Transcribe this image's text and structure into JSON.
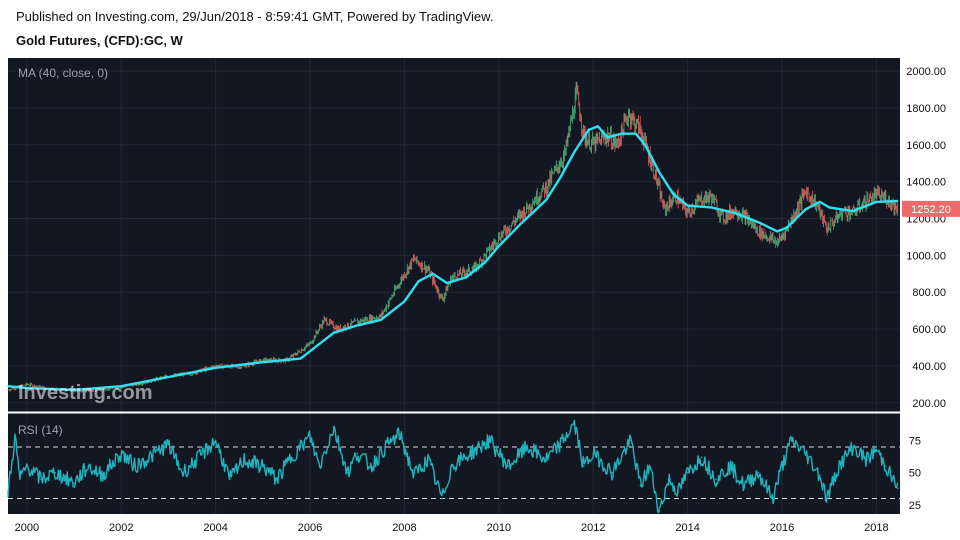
{
  "header": {
    "published": "Published on Investing.com, 29/Jun/2018 - 8:59:41 GMT, Powered by TradingView.",
    "title": "Gold Futures, (CFD):GC, W"
  },
  "watermark": "Investing.com",
  "colors": {
    "background": "#131722",
    "ma_line": "#2fe0f0",
    "rsi_line": "#1fb3be",
    "candle_up": "#48b77b",
    "candle_down": "#e0605e",
    "last_price_badge": "#ef6a6a"
  },
  "chart_data": [
    {
      "type": "line",
      "name": "price",
      "indicator_label": "MA (40, close, 0)",
      "y_range": [
        150,
        2060
      ],
      "y_ticks": [
        "2000.00",
        "1800.00",
        "1600.00",
        "1400.00",
        "1200.00",
        "1000.00",
        "800.00",
        "600.00",
        "400.00",
        "200.00"
      ],
      "y_tick_values": [
        2000,
        1800,
        1600,
        1400,
        1200,
        1000,
        800,
        600,
        400,
        200
      ],
      "last_price": "1252.20",
      "last_price_value": 1252.2,
      "series": [
        {
          "name": "Price",
          "x": [
            1999.6,
            2000.0,
            2000.5,
            2001.0,
            2001.5,
            2002.0,
            2002.5,
            2003.0,
            2003.5,
            2004.0,
            2004.5,
            2005.0,
            2005.5,
            2006.0,
            2006.3,
            2006.6,
            2007.0,
            2007.5,
            2008.0,
            2008.2,
            2008.5,
            2008.8,
            2009.0,
            2009.5,
            2010.0,
            2010.5,
            2011.0,
            2011.4,
            2011.65,
            2011.8,
            2012.0,
            2012.3,
            2012.5,
            2012.75,
            2013.0,
            2013.3,
            2013.5,
            2013.75,
            2014.0,
            2014.25,
            2014.5,
            2014.75,
            2015.0,
            2015.25,
            2015.5,
            2015.9,
            2016.0,
            2016.3,
            2016.5,
            2016.75,
            2016.95,
            2017.0,
            2017.3,
            2017.5,
            2017.75,
            2018.0,
            2018.2,
            2018.45
          ],
          "values": [
            270,
            300,
            275,
            265,
            270,
            285,
            310,
            345,
            360,
            400,
            395,
            430,
            430,
            520,
            650,
            600,
            640,
            670,
            900,
            980,
            920,
            760,
            880,
            930,
            1100,
            1230,
            1370,
            1550,
            1880,
            1650,
            1600,
            1650,
            1600,
            1770,
            1680,
            1450,
            1250,
            1320,
            1230,
            1300,
            1320,
            1200,
            1250,
            1200,
            1130,
            1070,
            1100,
            1240,
            1350,
            1270,
            1140,
            1160,
            1240,
            1230,
            1290,
            1330,
            1310,
            1252
          ]
        },
        {
          "name": "MA (40, close, 0)",
          "x": [
            1999.6,
            2000.0,
            2001.0,
            2002.0,
            2003.0,
            2004.0,
            2005.0,
            2005.8,
            2006.5,
            2007.0,
            2007.5,
            2008.0,
            2008.3,
            2008.6,
            2008.9,
            2009.3,
            2009.7,
            2010.0,
            2010.5,
            2011.0,
            2011.3,
            2011.6,
            2011.9,
            2012.1,
            2012.3,
            2012.6,
            2012.9,
            2013.1,
            2013.4,
            2013.7,
            2014.0,
            2014.5,
            2015.0,
            2015.5,
            2015.9,
            2016.1,
            2016.5,
            2016.8,
            2017.0,
            2017.5,
            2018.0,
            2018.45
          ],
          "values": [
            290,
            280,
            270,
            290,
            340,
            390,
            420,
            440,
            580,
            620,
            650,
            750,
            860,
            900,
            850,
            880,
            960,
            1050,
            1180,
            1300,
            1420,
            1560,
            1680,
            1700,
            1640,
            1660,
            1660,
            1600,
            1450,
            1330,
            1270,
            1260,
            1230,
            1180,
            1130,
            1150,
            1250,
            1290,
            1260,
            1240,
            1290,
            1295
          ]
        }
      ]
    },
    {
      "type": "line",
      "name": "rsi",
      "indicator_label": "RSI (14)",
      "y_range": [
        18,
        94
      ],
      "y_ticks": [
        "75",
        "50",
        "25"
      ],
      "y_tick_values": [
        75,
        50,
        25
      ],
      "levels": [
        70,
        30
      ],
      "series": [
        {
          "name": "RSI (14)",
          "x": [
            1999.6,
            1999.75,
            1999.85,
            2000.0,
            2000.3,
            2000.6,
            2001.0,
            2001.3,
            2001.6,
            2002.0,
            2002.3,
            2002.6,
            2003.0,
            2003.3,
            2003.6,
            2004.0,
            2004.3,
            2004.6,
            2005.0,
            2005.3,
            2005.6,
            2006.0,
            2006.2,
            2006.5,
            2006.8,
            2007.0,
            2007.3,
            2007.6,
            2007.9,
            2008.2,
            2008.5,
            2008.8,
            2009.0,
            2009.4,
            2009.8,
            2010.2,
            2010.6,
            2011.0,
            2011.3,
            2011.6,
            2011.8,
            2012.0,
            2012.4,
            2012.8,
            2013.0,
            2013.2,
            2013.4,
            2013.6,
            2013.8,
            2014.0,
            2014.3,
            2014.6,
            2014.9,
            2015.2,
            2015.5,
            2015.8,
            2016.0,
            2016.2,
            2016.5,
            2016.8,
            2016.95,
            2017.2,
            2017.5,
            2017.8,
            2018.0,
            2018.2,
            2018.45
          ],
          "values": [
            35,
            78,
            45,
            55,
            45,
            50,
            42,
            55,
            48,
            65,
            55,
            62,
            72,
            50,
            60,
            75,
            45,
            60,
            55,
            45,
            62,
            78,
            55,
            85,
            50,
            65,
            55,
            70,
            80,
            48,
            60,
            30,
            55,
            65,
            75,
            55,
            70,
            60,
            72,
            88,
            55,
            65,
            50,
            75,
            40,
            55,
            20,
            45,
            35,
            50,
            62,
            45,
            55,
            40,
            50,
            30,
            55,
            75,
            65,
            48,
            30,
            55,
            70,
            60,
            68,
            55,
            38
          ]
        }
      ]
    }
  ],
  "x_axis": {
    "ticks": [
      "2000",
      "2002",
      "2004",
      "2006",
      "2008",
      "2010",
      "2012",
      "2014",
      "2016",
      "2018"
    ],
    "tick_values": [
      2000,
      2002,
      2004,
      2006,
      2008,
      2010,
      2012,
      2014,
      2016,
      2018
    ]
  }
}
